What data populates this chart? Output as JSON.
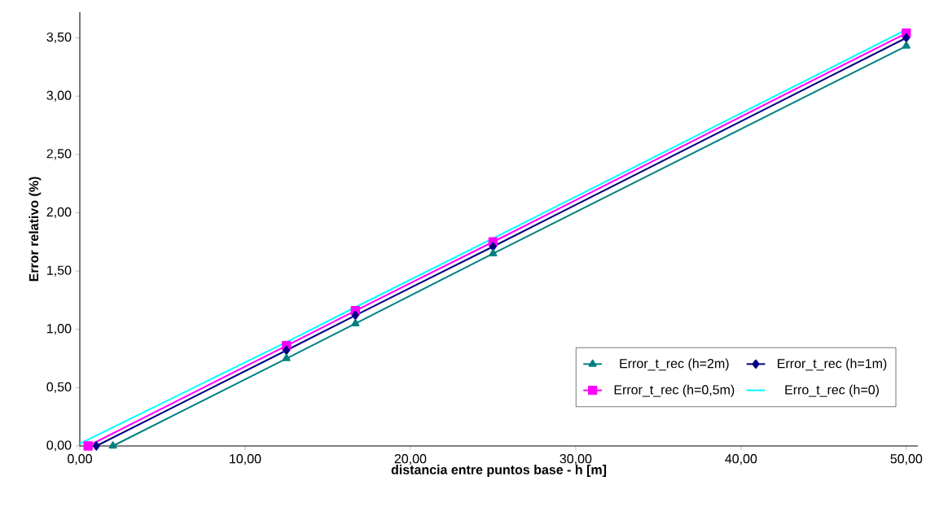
{
  "chart_data": {
    "type": "line",
    "xlabel": "distancia entre puntos base - h [m]",
    "ylabel": "Error relativo (%)",
    "series": [
      {
        "name": "Error_t_rec (h=2m)",
        "color": "#008080",
        "marker": "triangle",
        "x": [
          2,
          12.5,
          16.67,
          25,
          50
        ],
        "values": [
          0,
          0.75,
          1.05,
          1.65,
          3.43
        ]
      },
      {
        "name": "Error_t_rec (h=1m)",
        "color": "#000080",
        "marker": "diamond",
        "x": [
          1,
          12.5,
          16.67,
          25,
          50
        ],
        "values": [
          0,
          0.82,
          1.12,
          1.71,
          3.5
        ]
      },
      {
        "name": "Error_t_rec (h=0,5m)",
        "color": "#ff00ff",
        "marker": "square",
        "x": [
          0.5,
          12.5,
          16.67,
          25,
          50
        ],
        "values": [
          0,
          0.86,
          1.16,
          1.75,
          3.54
        ]
      },
      {
        "name": "Erro_t_rec (h=0)",
        "color": "#00ffff",
        "marker": "none",
        "x": [
          0,
          12.5,
          16.67,
          25,
          50
        ],
        "values": [
          0.02,
          0.89,
          1.19,
          1.78,
          3.57
        ]
      }
    ],
    "xlim": [
      0,
      50.7
    ],
    "ylim": [
      0,
      3.72
    ],
    "xticks": [
      {
        "value": 0,
        "label": "0,00"
      },
      {
        "value": 10,
        "label": "10,00"
      },
      {
        "value": 20,
        "label": "20,00"
      },
      {
        "value": 30,
        "label": "30,00"
      },
      {
        "value": 40,
        "label": "40,00"
      },
      {
        "value": 50,
        "label": "50,00"
      }
    ],
    "yticks": [
      {
        "value": 0,
        "label": "0,00"
      },
      {
        "value": 0.5,
        "label": "0,50"
      },
      {
        "value": 1,
        "label": "1,00"
      },
      {
        "value": 1.5,
        "label": "1,50"
      },
      {
        "value": 2,
        "label": "2,00"
      },
      {
        "value": 2.5,
        "label": "2,50"
      },
      {
        "value": 3,
        "label": "3,00"
      },
      {
        "value": 3.5,
        "label": "3,50"
      }
    ],
    "legend": "bottom right",
    "grid": false
  }
}
